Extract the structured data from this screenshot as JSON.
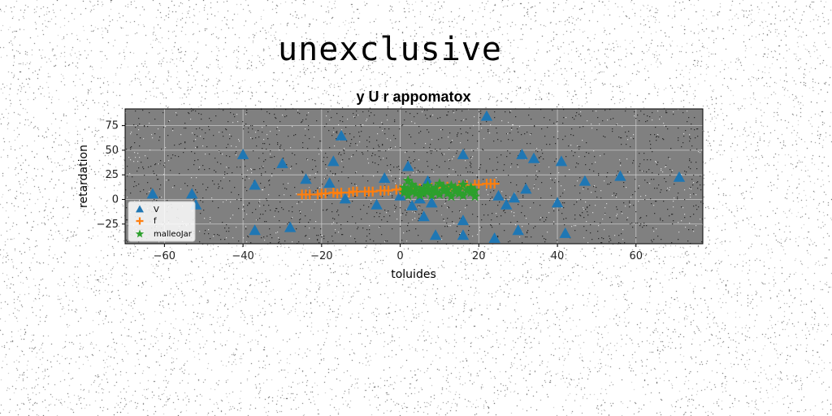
{
  "suptitle": "unexclusive",
  "colors": {
    "plot_background": "#808080",
    "grid": "#c8c8c8",
    "series_v": "#1f77b4",
    "series_f": "#ff7f0e",
    "series_m": "#2ca02c"
  },
  "chart_data": {
    "type": "scatter",
    "title": "y U r appomatox",
    "xlabel": "toluides",
    "ylabel": "retardation",
    "xlim": [
      -70,
      77
    ],
    "ylim": [
      -45,
      92
    ],
    "xticks": [
      -60,
      -40,
      -20,
      0,
      20,
      40,
      60
    ],
    "yticks": [
      -25,
      0,
      25,
      50,
      75
    ],
    "grid": true,
    "legend_position": "lower-left",
    "series": [
      {
        "name": "V",
        "marker": "triangle",
        "color": "#1f77b4",
        "points": [
          [
            -63,
            5
          ],
          [
            -53,
            5
          ],
          [
            -52,
            -6
          ],
          [
            -40,
            45
          ],
          [
            -37,
            14
          ],
          [
            -37,
            -32
          ],
          [
            -30,
            36
          ],
          [
            -28,
            -29
          ],
          [
            -24,
            20
          ],
          [
            -18,
            16
          ],
          [
            -17,
            38
          ],
          [
            -15,
            64
          ],
          [
            -14,
            0
          ],
          [
            -6,
            -6
          ],
          [
            -4,
            21
          ],
          [
            0,
            3
          ],
          [
            2,
            33
          ],
          [
            3,
            -7
          ],
          [
            5,
            0
          ],
          [
            6,
            -18
          ],
          [
            7,
            18
          ],
          [
            8,
            -4
          ],
          [
            8,
            -4
          ],
          [
            9,
            -37
          ],
          [
            16,
            45
          ],
          [
            16,
            -22
          ],
          [
            16,
            -37
          ],
          [
            22,
            84
          ],
          [
            24,
            -40
          ],
          [
            25,
            3
          ],
          [
            27,
            -6
          ],
          [
            29,
            1
          ],
          [
            30,
            -32
          ],
          [
            31,
            45
          ],
          [
            32,
            10
          ],
          [
            34,
            41
          ],
          [
            40,
            -4
          ],
          [
            41,
            38
          ],
          [
            42,
            -35
          ],
          [
            47,
            18
          ],
          [
            56,
            23
          ],
          [
            71,
            22
          ]
        ]
      },
      {
        "name": "f",
        "marker": "plus",
        "color": "#ff7f0e",
        "points": [
          [
            -25,
            5
          ],
          [
            -24,
            5
          ],
          [
            -23,
            5
          ],
          [
            -21,
            5
          ],
          [
            -20,
            6
          ],
          [
            -19,
            6
          ],
          [
            -17,
            7
          ],
          [
            -16,
            6
          ],
          [
            -15,
            7
          ],
          [
            -13,
            7
          ],
          [
            -12,
            8
          ],
          [
            -11,
            8
          ],
          [
            -9,
            8
          ],
          [
            -8,
            8
          ],
          [
            -7,
            8
          ],
          [
            -5,
            9
          ],
          [
            -4,
            9
          ],
          [
            -3,
            9
          ],
          [
            -1,
            10
          ],
          [
            0,
            10
          ],
          [
            1,
            10
          ],
          [
            3,
            11
          ],
          [
            4,
            11
          ],
          [
            5,
            11
          ],
          [
            7,
            12
          ],
          [
            8,
            12
          ],
          [
            9,
            12
          ],
          [
            11,
            13
          ],
          [
            12,
            13
          ],
          [
            13,
            13
          ],
          [
            15,
            14
          ],
          [
            16,
            14
          ],
          [
            17,
            14
          ],
          [
            19,
            15
          ],
          [
            20,
            15
          ],
          [
            22,
            16
          ],
          [
            23,
            16
          ],
          [
            24,
            16
          ]
        ]
      },
      {
        "name": "malleoJar",
        "marker": "star",
        "color": "#2ca02c",
        "points": [
          [
            1,
            12
          ],
          [
            1,
            7
          ],
          [
            2,
            19
          ],
          [
            2,
            10
          ],
          [
            2,
            4
          ],
          [
            3,
            15
          ],
          [
            3,
            8
          ],
          [
            4,
            6
          ],
          [
            4,
            12
          ],
          [
            5,
            9
          ],
          [
            5,
            4
          ],
          [
            6,
            11
          ],
          [
            6,
            6
          ],
          [
            7,
            14
          ],
          [
            7,
            8
          ],
          [
            8,
            4
          ],
          [
            8,
            10
          ],
          [
            9,
            12
          ],
          [
            9,
            7
          ],
          [
            10,
            16
          ],
          [
            10,
            5
          ],
          [
            11,
            9
          ],
          [
            11,
            13
          ],
          [
            12,
            6
          ],
          [
            12,
            10
          ],
          [
            13,
            14
          ],
          [
            13,
            3
          ],
          [
            14,
            8
          ],
          [
            14,
            12
          ],
          [
            15,
            6
          ],
          [
            15,
            10
          ],
          [
            16,
            4
          ],
          [
            16,
            15
          ],
          [
            17,
            9
          ],
          [
            18,
            12
          ],
          [
            18,
            7
          ],
          [
            19,
            3
          ],
          [
            19,
            9
          ]
        ]
      }
    ]
  }
}
